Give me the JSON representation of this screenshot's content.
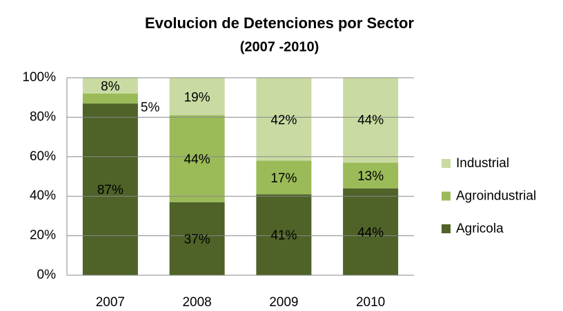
{
  "chart_data": {
    "type": "stacked_bar",
    "title": "Evolucion de Detenciones por Sector",
    "subtitle": "(2007 -2010)",
    "categories": [
      "2007",
      "2008",
      "2009",
      "2010"
    ],
    "series": [
      {
        "name": "Agricola",
        "color": "#4f6228",
        "values": [
          87,
          37,
          41,
          44
        ],
        "value_labels": [
          "87%",
          "37%",
          "41%",
          "44%"
        ]
      },
      {
        "name": "Agroindustrial",
        "color": "#9bbb59",
        "values": [
          5,
          44,
          17,
          13
        ],
        "value_labels": [
          "5%",
          "44%",
          "17%",
          "13%"
        ]
      },
      {
        "name": "Industrial",
        "color": "#c9dba2",
        "values": [
          8,
          19,
          42,
          44
        ],
        "value_labels": [
          "8%",
          "19%",
          "42%",
          "44%"
        ]
      }
    ],
    "ylim": [
      0,
      100
    ],
    "yticks": [
      {
        "value": 0,
        "label": "0%"
      },
      {
        "value": 20,
        "label": "20%"
      },
      {
        "value": 40,
        "label": "40%"
      },
      {
        "value": 60,
        "label": "60%"
      },
      {
        "value": 80,
        "label": "80%"
      },
      {
        "value": 100,
        "label": "100%"
      }
    ],
    "grid": true,
    "legend": "right"
  }
}
